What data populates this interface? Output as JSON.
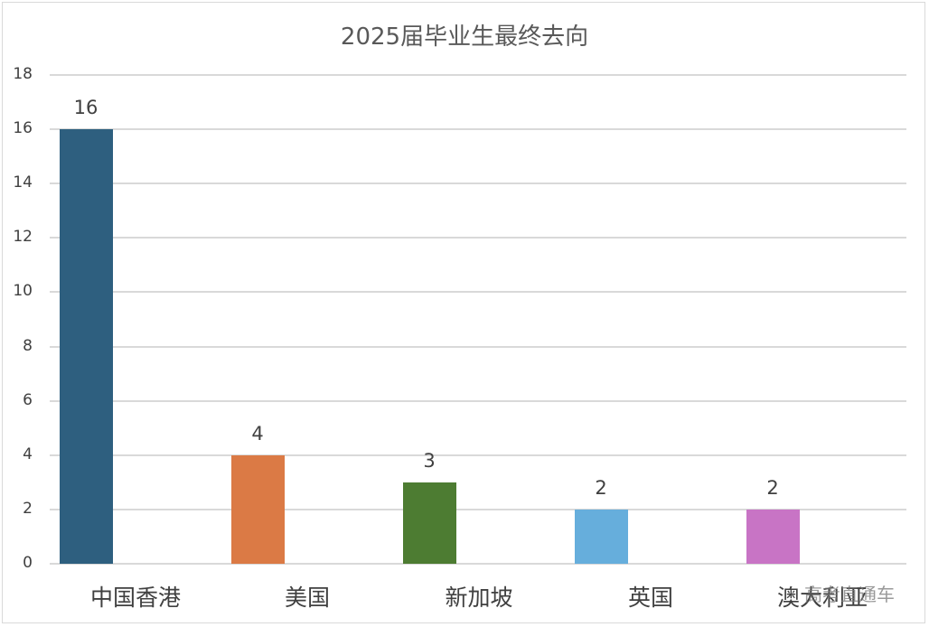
{
  "chart_data": {
    "type": "bar",
    "title": "2025届毕业生最终去向",
    "categories": [
      "中国香港",
      "美国",
      "新加坡",
      "英国",
      "澳大利亚"
    ],
    "values": [
      16,
      4,
      3,
      2,
      2
    ],
    "colors": [
      "#2e5f7f",
      "#db7a45",
      "#4d7c32",
      "#66aedc",
      "#c874c5"
    ],
    "xlabel": "",
    "ylabel": "",
    "ylim": [
      0,
      18
    ],
    "yticks": [
      0,
      2,
      4,
      6,
      8,
      10,
      12,
      14,
      16,
      18
    ],
    "grid": true,
    "legend": "none",
    "data_labels": true
  },
  "watermark": "高考直通车"
}
